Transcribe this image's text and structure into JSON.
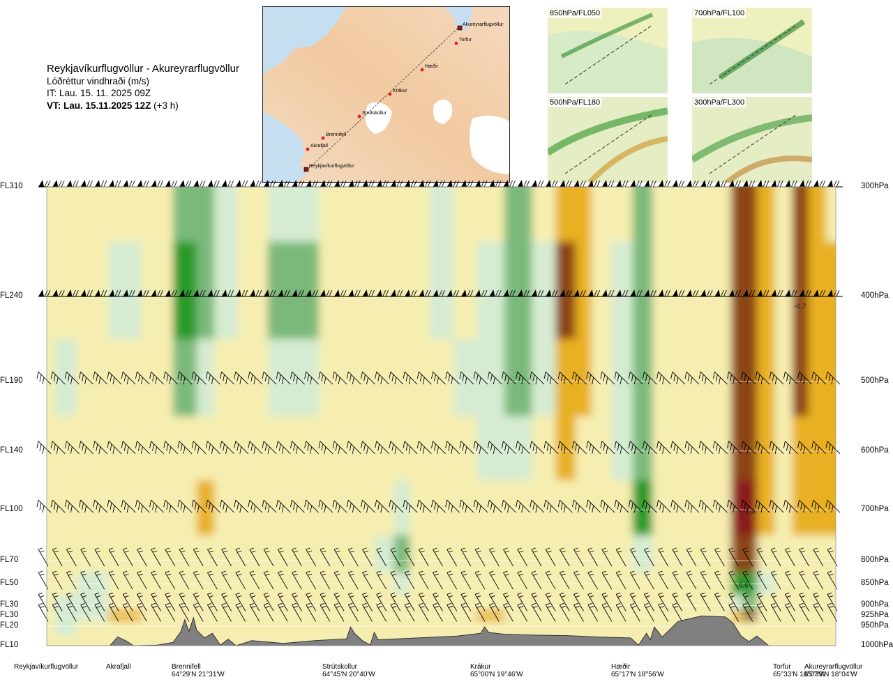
{
  "title": {
    "route": "Reykjavíkurflugvöllur - Akureyrarflugvöllur",
    "parameter": "Lóðréttur vindhraði (m/s)",
    "issue_time": "IT: Lau. 15. 11. 2025 09Z",
    "valid_time": "VT: Lau. 15.11.2025 12Z",
    "lead_time": "(+3 h)"
  },
  "route_map": {
    "points": [
      "Akureyrarflugvöllur",
      "Torfur",
      "Hæðir",
      "Krákur",
      "Strútskollur",
      "Brennifell",
      "Akrafjall",
      "Reykjavíkurflugvöllur"
    ]
  },
  "minimaps": [
    {
      "label": "850hPa/FL050"
    },
    {
      "label": "700hPa/FL100"
    },
    {
      "label": "500hPa/FL180"
    },
    {
      "label": "300hPa/FL300"
    }
  ],
  "colors": {
    "strong_down": "#8b1a1a",
    "down": "#8b4513",
    "weak_down": "#e8b020",
    "near_zero": "#f6eeb0",
    "weak_up": "#d6ecd2",
    "up": "#7ab97a",
    "strong_up": "#2a9a2a",
    "terrain": "#808080"
  },
  "chart_data": {
    "type": "heatmap",
    "variable": "Lóðréttur vindhraði (m/s)",
    "flight_levels": [
      "FL310",
      "FL240",
      "FL190",
      "FL140",
      "FL100",
      "FL70",
      "FL50",
      "FL30",
      "FL30",
      "FL20",
      "FL10"
    ],
    "pressure_levels": [
      "300hPa",
      "400hPa",
      "500hPa",
      "600hPa",
      "700hPa",
      "800hPa",
      "850hPa",
      "900hPa",
      "925hPa",
      "950hPa",
      "1000hPa"
    ],
    "pressure_values_hpa": [
      300,
      400,
      500,
      600,
      700,
      800,
      850,
      900,
      925,
      950,
      1000
    ],
    "locations": [
      {
        "name": "Reykjavíkurflugvöllur",
        "coords": "",
        "frac": 0.0
      },
      {
        "name": "Akrafjall",
        "coords": "",
        "frac": 0.09
      },
      {
        "name": "Brennifell",
        "coords": "64°29'N 21°31'W",
        "frac": 0.186
      },
      {
        "name": "Strútskollur",
        "coords": "64°45'N 20°40'W",
        "frac": 0.376
      },
      {
        "name": "Krákur",
        "coords": "65°00'N 19°46'W",
        "frac": 0.55
      },
      {
        "name": "Hæðir",
        "coords": "65°17'N 18°56'W",
        "frac": 0.74
      },
      {
        "name": "Torfur",
        "coords": "65°33'N 18°07'W",
        "frac": 0.94
      },
      {
        "name": "Akureyrarflugvöllur",
        "coords": "65°39'N 18°04'W",
        "frac": 1.0
      }
    ],
    "annotations": [
      {
        "text": "-0.7",
        "frac": 0.955,
        "p": 410
      },
      {
        "text": "-1.2",
        "frac": 0.89,
        "p": 702
      },
      {
        "text": "0.6",
        "frac": 0.883,
        "p": 852
      }
    ],
    "terrain_profile_m": [
      [
        0.0,
        10
      ],
      [
        0.05,
        20
      ],
      [
        0.08,
        15
      ],
      [
        0.09,
        300
      ],
      [
        0.1,
        220
      ],
      [
        0.11,
        40
      ],
      [
        0.14,
        120
      ],
      [
        0.16,
        180
      ],
      [
        0.17,
        420
      ],
      [
        0.175,
        680
      ],
      [
        0.18,
        420
      ],
      [
        0.186,
        720
      ],
      [
        0.19,
        450
      ],
      [
        0.2,
        280
      ],
      [
        0.21,
        380
      ],
      [
        0.22,
        120
      ],
      [
        0.23,
        250
      ],
      [
        0.24,
        60
      ],
      [
        0.26,
        220
      ],
      [
        0.3,
        160
      ],
      [
        0.34,
        220
      ],
      [
        0.38,
        260
      ],
      [
        0.385,
        520
      ],
      [
        0.39,
        380
      ],
      [
        0.4,
        220
      ],
      [
        0.41,
        120
      ],
      [
        0.415,
        400
      ],
      [
        0.42,
        240
      ],
      [
        0.47,
        280
      ],
      [
        0.52,
        320
      ],
      [
        0.55,
        380
      ],
      [
        0.555,
        520
      ],
      [
        0.56,
        400
      ],
      [
        0.58,
        360
      ],
      [
        0.62,
        340
      ],
      [
        0.66,
        330
      ],
      [
        0.7,
        300
      ],
      [
        0.74,
        280
      ],
      [
        0.75,
        120
      ],
      [
        0.76,
        380
      ],
      [
        0.765,
        240
      ],
      [
        0.77,
        520
      ],
      [
        0.78,
        300
      ],
      [
        0.8,
        640
      ],
      [
        0.83,
        760
      ],
      [
        0.86,
        740
      ],
      [
        0.87,
        600
      ],
      [
        0.88,
        320
      ],
      [
        0.89,
        200
      ],
      [
        0.9,
        320
      ],
      [
        0.915,
        80
      ],
      [
        0.93,
        20
      ],
      [
        0.96,
        30
      ],
      [
        0.99,
        20
      ],
      [
        1.0,
        10
      ]
    ],
    "columns": [
      {
        "frac": 0.0,
        "values": [
          0.02,
          0.05,
          0.08,
          0.05,
          -0.02,
          0.02,
          0.05,
          0.03,
          0.02,
          0.01,
          0.0
        ]
      },
      {
        "frac": 0.02,
        "values": [
          0.03,
          0.06,
          0.12,
          0.06,
          0.0,
          0.03,
          0.1,
          0.12,
          0.18,
          0.14,
          0.0
        ]
      },
      {
        "frac": 0.055,
        "values": [
          0.04,
          0.05,
          0.05,
          0.0,
          -0.05,
          0.05,
          0.2,
          0.2,
          0.15,
          0.1,
          0.0
        ]
      },
      {
        "frac": 0.1,
        "values": [
          0.05,
          0.12,
          0.06,
          0.0,
          -0.02,
          0.05,
          0.1,
          -0.1,
          -0.15,
          -0.1,
          0.0
        ]
      },
      {
        "frac": 0.14,
        "values": [
          0.08,
          0.05,
          0.06,
          0.05,
          0.0,
          0.02,
          0.05,
          0.05,
          0.0,
          -0.05,
          0.0
        ]
      },
      {
        "frac": 0.18,
        "values": [
          0.35,
          0.45,
          0.25,
          0.02,
          -0.05,
          -0.05,
          0.1,
          0.1,
          -0.05,
          -0.05,
          0.0
        ]
      },
      {
        "frac": 0.2,
        "values": [
          0.25,
          0.3,
          0.15,
          -0.08,
          -0.15,
          -0.05,
          0.05,
          0.05,
          0.0,
          0.0,
          0.0
        ]
      },
      {
        "frac": 0.225,
        "values": [
          0.15,
          0.12,
          0.05,
          -0.08,
          -0.1,
          -0.03,
          0.05,
          0.05,
          -0.05,
          0.0,
          0.0
        ]
      },
      {
        "frac": 0.26,
        "values": [
          0.03,
          0.05,
          0.02,
          -0.02,
          -0.03,
          -0.02,
          0.08,
          0.05,
          0.0,
          0.0,
          0.0
        ]
      },
      {
        "frac": 0.3,
        "values": [
          0.15,
          0.25,
          0.12,
          0.05,
          0.02,
          -0.03,
          0.05,
          0.05,
          0.0,
          0.0,
          0.0
        ]
      },
      {
        "frac": 0.32,
        "values": [
          0.2,
          0.3,
          0.18,
          0.08,
          0.03,
          -0.02,
          0.05,
          0.05,
          -0.05,
          0.0,
          0.0
        ]
      },
      {
        "frac": 0.37,
        "values": [
          0.05,
          0.08,
          0.03,
          -0.02,
          -0.02,
          -0.03,
          0.0,
          0.02,
          -0.02,
          0.0,
          0.0
        ]
      },
      {
        "frac": 0.4,
        "values": [
          -0.02,
          -0.03,
          -0.05,
          -0.03,
          -0.02,
          0.0,
          0.05,
          0.05,
          0.0,
          0.0,
          0.0
        ]
      },
      {
        "frac": 0.43,
        "values": [
          0.02,
          0.02,
          0.0,
          0.05,
          0.1,
          0.15,
          0.1,
          0.05,
          0.02,
          0.0,
          0.0
        ]
      },
      {
        "frac": 0.45,
        "values": [
          0.05,
          0.03,
          0.02,
          0.08,
          0.15,
          0.25,
          0.12,
          0.06,
          0.0,
          0.0,
          0.0
        ]
      },
      {
        "frac": 0.47,
        "values": [
          0.1,
          0.1,
          0.05,
          0.05,
          0.08,
          0.1,
          0.05,
          0.05,
          0.0,
          0.0,
          0.0
        ]
      },
      {
        "frac": 0.5,
        "values": [
          0.12,
          0.15,
          0.1,
          0.02,
          -0.02,
          -0.03,
          0.05,
          0.05,
          0.0,
          0.0,
          0.0
        ]
      },
      {
        "frac": 0.53,
        "values": [
          0.05,
          0.1,
          0.15,
          0.1,
          0.05,
          0.0,
          0.02,
          0.02,
          0.0,
          0.0,
          0.0
        ]
      },
      {
        "frac": 0.56,
        "values": [
          0.08,
          0.12,
          0.18,
          0.12,
          0.05,
          0.02,
          0.0,
          -0.08,
          -0.12,
          0.0,
          0.0
        ]
      },
      {
        "frac": 0.6,
        "values": [
          0.25,
          0.35,
          0.3,
          0.15,
          0.05,
          0.0,
          0.05,
          0.05,
          0.0,
          0.0,
          0.0
        ]
      },
      {
        "frac": 0.63,
        "values": [
          0.1,
          0.15,
          0.12,
          0.05,
          0.02,
          0.0,
          0.05,
          0.05,
          0.02,
          0.0,
          0.0
        ]
      },
      {
        "frac": 0.66,
        "values": [
          -0.35,
          -0.45,
          -0.4,
          -0.15,
          -0.05,
          -0.02,
          0.05,
          0.05,
          0.0,
          0.0,
          0.0
        ]
      },
      {
        "frac": 0.68,
        "values": [
          -0.15,
          -0.2,
          -0.2,
          -0.1,
          -0.05,
          0.0,
          0.05,
          0.05,
          0.0,
          0.0,
          0.0
        ]
      },
      {
        "frac": 0.7,
        "values": [
          0.02,
          0.02,
          0.0,
          0.0,
          0.0,
          0.0,
          0.05,
          0.05,
          0.0,
          0.0,
          0.0
        ]
      },
      {
        "frac": 0.73,
        "values": [
          0.1,
          0.15,
          0.2,
          0.15,
          0.05,
          0.0,
          0.05,
          0.05,
          0.0,
          0.0,
          0.0
        ]
      },
      {
        "frac": 0.755,
        "values": [
          0.25,
          0.3,
          0.32,
          0.3,
          0.45,
          0.2,
          0.05,
          0.05,
          -0.1,
          0.0,
          0.0
        ]
      },
      {
        "frac": 0.78,
        "values": [
          0.1,
          0.1,
          0.05,
          0.02,
          0.05,
          0.05,
          0.05,
          0.1,
          0.05,
          0.0,
          0.0
        ]
      },
      {
        "frac": 0.82,
        "values": [
          0.05,
          0.05,
          0.02,
          0.0,
          0.0,
          0.03,
          0.05,
          0.05,
          0.0,
          0.0,
          0.0
        ]
      },
      {
        "frac": 0.86,
        "values": [
          -0.05,
          -0.05,
          -0.05,
          -0.05,
          -0.05,
          0.0,
          0.05,
          0.02,
          -0.1,
          0.0,
          0.0
        ]
      },
      {
        "frac": 0.875,
        "values": [
          -0.45,
          -0.5,
          -0.6,
          -0.75,
          -1.1,
          -0.6,
          0.4,
          0.15,
          -0.3,
          0.0,
          0.0
        ]
      },
      {
        "frac": 0.89,
        "values": [
          -0.5,
          -0.55,
          -0.65,
          -0.85,
          -1.2,
          -0.5,
          0.6,
          0.3,
          -0.45,
          0.0,
          0.0
        ]
      },
      {
        "frac": 0.91,
        "values": [
          -0.25,
          -0.3,
          -0.3,
          -0.3,
          -0.2,
          -0.05,
          0.2,
          0.1,
          -0.05,
          0.0,
          0.0
        ]
      },
      {
        "frac": 0.935,
        "values": [
          -0.05,
          -0.05,
          -0.05,
          -0.02,
          0.02,
          0.05,
          0.1,
          0.05,
          0.0,
          0.0,
          0.0
        ]
      },
      {
        "frac": 0.955,
        "values": [
          -0.55,
          -0.65,
          -0.5,
          -0.35,
          -0.15,
          -0.02,
          0.02,
          0.05,
          0.0,
          0.0,
          0.0
        ]
      },
      {
        "frac": 0.975,
        "values": [
          -0.25,
          -0.3,
          -0.3,
          -0.25,
          -0.15,
          0.0,
          0.05,
          0.05,
          0.0,
          0.0,
          0.0
        ]
      },
      {
        "frac": 1.0,
        "values": [
          -0.1,
          -0.12,
          -0.15,
          -0.25,
          -0.15,
          0.0,
          0.05,
          0.05,
          0.0,
          0.0,
          0.0
        ]
      }
    ],
    "wind_barb_levels_hpa": [
      300,
      400,
      500,
      600,
      700,
      800,
      850,
      900,
      925
    ]
  }
}
